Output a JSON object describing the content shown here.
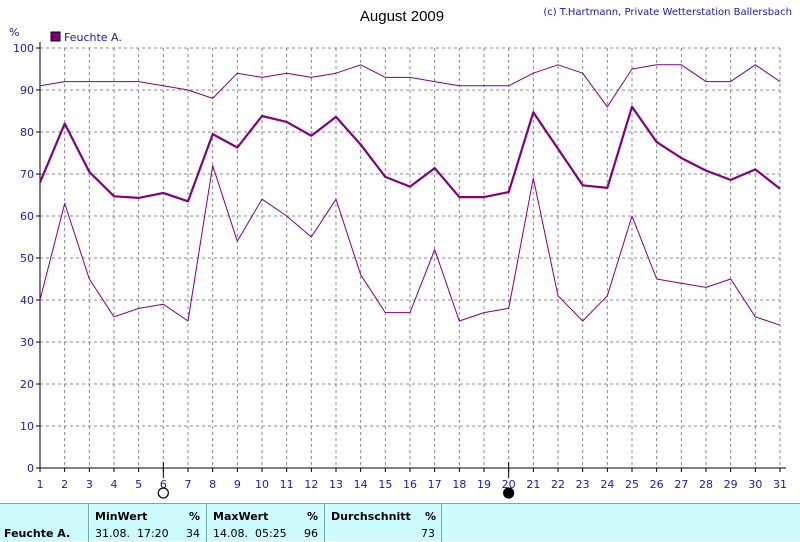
{
  "header": {
    "title": "August 2009",
    "copyright": "(c) T.Hartmann, Private Wetterstation Ballersbach",
    "unit": "%"
  },
  "colors": {
    "series": "#800080",
    "grid": "#888888",
    "axis": "#000000",
    "stats_bg": "#cdfbfb"
  },
  "chart_data": {
    "type": "line",
    "title": "August 2009",
    "ylabel": "%",
    "ylim": [
      0,
      100
    ],
    "yticks": [
      0,
      10,
      20,
      30,
      40,
      50,
      60,
      70,
      80,
      90,
      100
    ],
    "x": [
      1,
      2,
      3,
      4,
      5,
      6,
      7,
      8,
      9,
      10,
      11,
      12,
      13,
      14,
      15,
      16,
      17,
      18,
      19,
      20,
      21,
      22,
      23,
      24,
      25,
      26,
      27,
      28,
      29,
      30,
      31
    ],
    "grid": true,
    "legend": "top-left",
    "legend_entries": [
      "Feuchte A."
    ],
    "series": [
      {
        "name": "Feuchte A.",
        "role": "max",
        "values": [
          91,
          92,
          92,
          92,
          92,
          91,
          90,
          88,
          94,
          93,
          94,
          93,
          94,
          96,
          93,
          93,
          92,
          91,
          91,
          91,
          94,
          96,
          94,
          86,
          95,
          96,
          96,
          92,
          92,
          96,
          92
        ]
      },
      {
        "name": "Feuchte A.",
        "role": "avg",
        "values": [
          68,
          82,
          70.5,
          64.7,
          64.3,
          65.5,
          63.5,
          79.5,
          76.3,
          83.8,
          82.4,
          79.1,
          83.6,
          77,
          69.3,
          67,
          71.4,
          64.5,
          64.5,
          65.7,
          84.7,
          76,
          67.3,
          66.7,
          86,
          77.6,
          73.8,
          70.8,
          68.6,
          71.1,
          66.5
        ]
      },
      {
        "name": "Feuchte A.",
        "role": "min",
        "values": [
          40,
          63,
          45,
          36,
          38,
          39,
          35,
          72,
          54,
          64,
          60,
          55,
          64,
          46,
          37,
          37,
          52,
          35,
          37,
          38,
          69,
          41,
          35,
          41,
          60,
          45,
          44,
          43,
          45,
          36,
          34
        ]
      }
    ],
    "moon_phases": [
      {
        "day": 6,
        "phase": "full-moon-icon"
      },
      {
        "day": 20,
        "phase": "new-moon-icon"
      }
    ]
  },
  "stats": {
    "sensor": "Feuchte A.",
    "min_header": "MinWert",
    "min_unit": "%",
    "min_time": "31.08.  17:20",
    "min_value": "34",
    "max_header": "MaxWert",
    "max_unit": "%",
    "max_time": "14.08.  05:25",
    "max_value": "96",
    "avg_header": "Durchschnitt",
    "avg_unit": "%",
    "avg_value": "73"
  }
}
